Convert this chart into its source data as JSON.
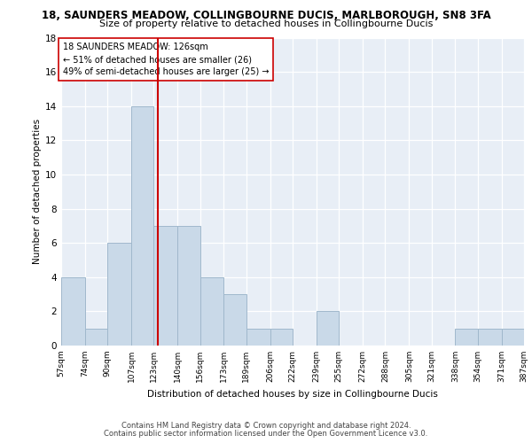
{
  "title": "18, SAUNDERS MEADOW, COLLINGBOURNE DUCIS, MARLBOROUGH, SN8 3FA",
  "subtitle": "Size of property relative to detached houses in Collingbourne Ducis",
  "xlabel": "Distribution of detached houses by size in Collingbourne Ducis",
  "ylabel": "Number of detached properties",
  "bin_edges": [
    57,
    74,
    90,
    107,
    123,
    140,
    156,
    173,
    189,
    206,
    222,
    239,
    255,
    272,
    288,
    305,
    321,
    338,
    354,
    371,
    387
  ],
  "bin_counts": [
    4,
    1,
    6,
    14,
    7,
    7,
    4,
    3,
    1,
    1,
    0,
    2,
    0,
    0,
    0,
    0,
    0,
    1,
    1,
    1
  ],
  "bar_color": "#c9d9e8",
  "bar_edge_color": "#a0b8cc",
  "property_size": 126,
  "vline_color": "#cc0000",
  "annotation_line1": "18 SAUNDERS MEADOW: 126sqm",
  "annotation_line2": "← 51% of detached houses are smaller (26)",
  "annotation_line3": "49% of semi-detached houses are larger (25) →",
  "annotation_box_color": "#ffffff",
  "annotation_box_edge": "#cc0000",
  "ylim": [
    0,
    18
  ],
  "yticks": [
    0,
    2,
    4,
    6,
    8,
    10,
    12,
    14,
    16,
    18
  ],
  "tick_labels": [
    "57sqm",
    "74sqm",
    "90sqm",
    "107sqm",
    "123sqm",
    "140sqm",
    "156sqm",
    "173sqm",
    "189sqm",
    "206sqm",
    "222sqm",
    "239sqm",
    "255sqm",
    "272sqm",
    "288sqm",
    "305sqm",
    "321sqm",
    "338sqm",
    "354sqm",
    "371sqm",
    "387sqm"
  ],
  "footer_line1": "Contains HM Land Registry data © Crown copyright and database right 2024.",
  "footer_line2": "Contains public sector information licensed under the Open Government Licence v3.0.",
  "background_color": "#e8eef6",
  "grid_color": "#ffffff",
  "fig_bg_color": "#ffffff"
}
